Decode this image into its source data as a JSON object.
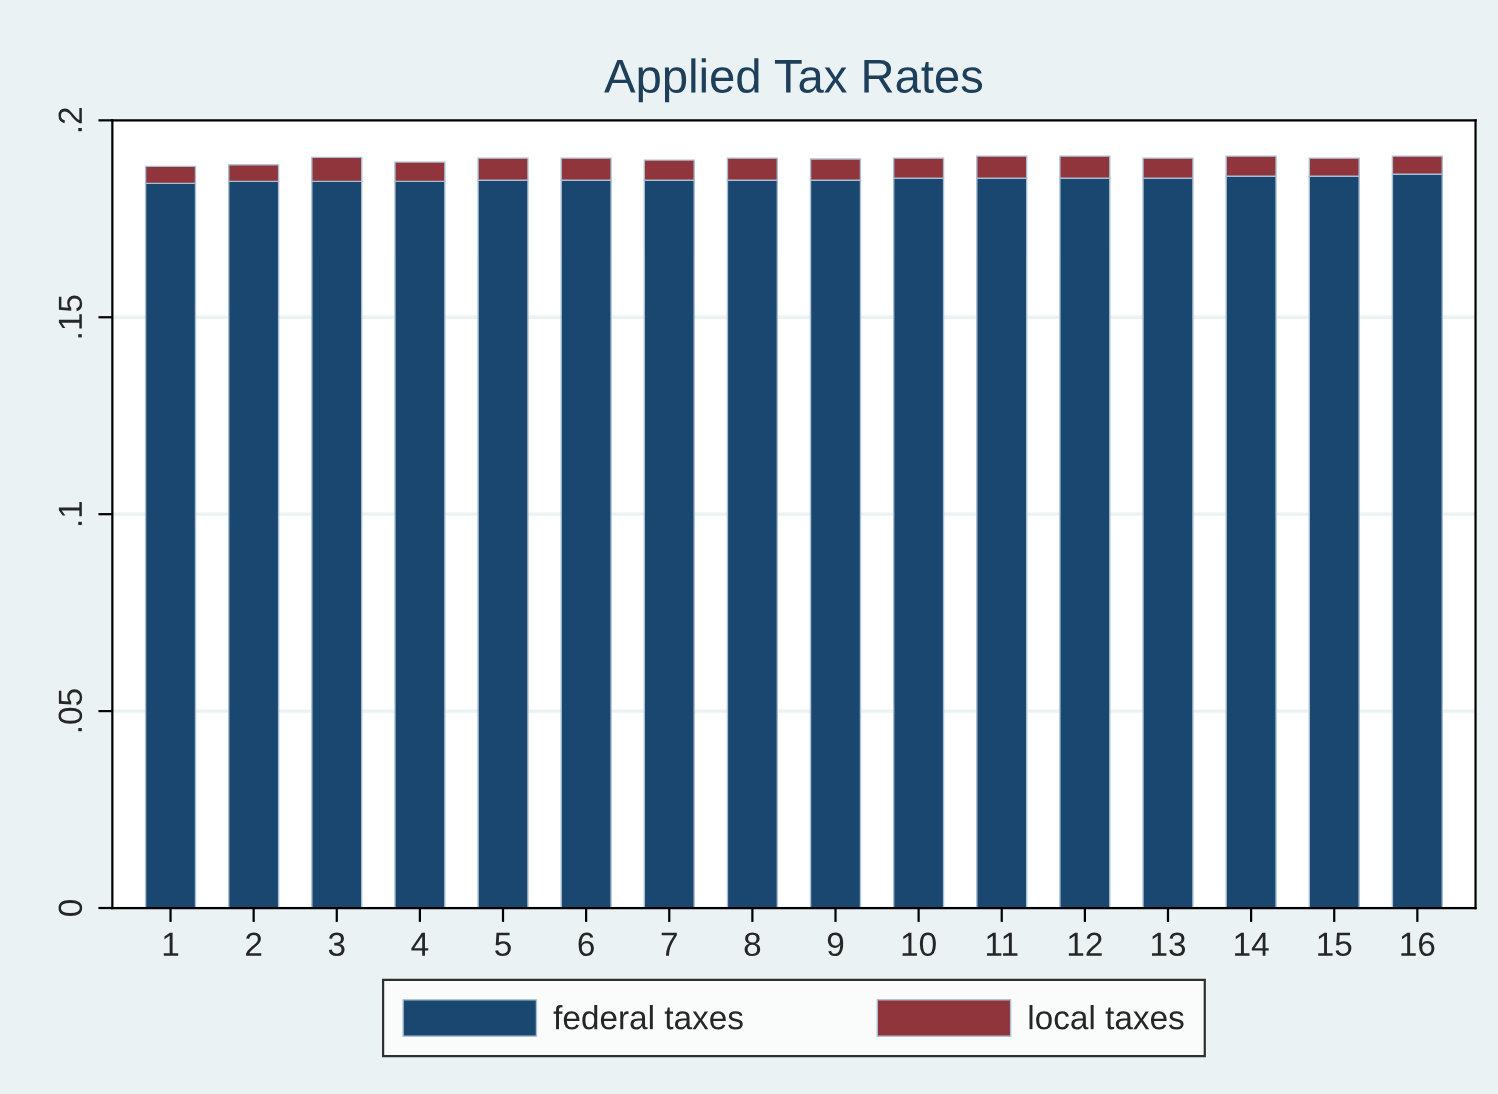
{
  "chart_data": {
    "type": "bar",
    "title": "Applied Tax Rates",
    "categories": [
      "1",
      "2",
      "3",
      "4",
      "5",
      "6",
      "7",
      "8",
      "9",
      "10",
      "11",
      "12",
      "13",
      "14",
      "15",
      "16"
    ],
    "stacked": true,
    "series": [
      {
        "name": "federal taxes",
        "color": "#1a476f",
        "values": [
          0.184,
          0.1845,
          0.1845,
          0.1845,
          0.1848,
          0.1848,
          0.1848,
          0.1848,
          0.1848,
          0.1853,
          0.1853,
          0.1853,
          0.1853,
          0.1858,
          0.1858,
          0.1863
        ]
      },
      {
        "name": "local taxes",
        "color": "#90353b",
        "values": [
          0.0043,
          0.0042,
          0.0061,
          0.0049,
          0.0056,
          0.0056,
          0.0051,
          0.0056,
          0.0054,
          0.0051,
          0.0056,
          0.0056,
          0.0051,
          0.0051,
          0.0046,
          0.0046
        ]
      }
    ],
    "ylim": [
      0,
      0.2
    ],
    "yticks": [
      {
        "value": 0,
        "label": "0"
      },
      {
        "value": 0.05,
        "label": ".05"
      },
      {
        "value": 0.1,
        "label": ".1"
      },
      {
        "value": 0.15,
        "label": ".15"
      },
      {
        "value": 0.2,
        "label": ".2"
      }
    ],
    "grid": "y",
    "legend": "bottom"
  }
}
